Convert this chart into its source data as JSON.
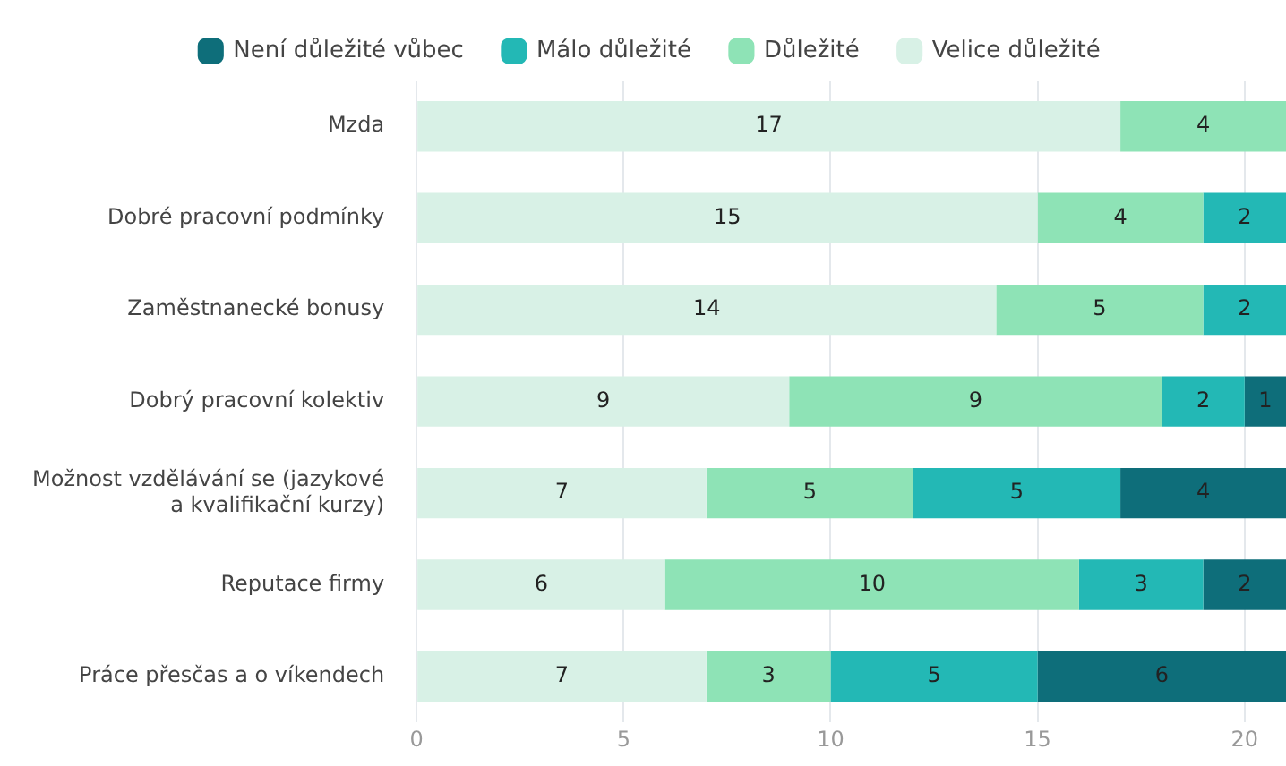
{
  "chart_data": {
    "type": "bar",
    "orientation": "horizontal",
    "stacked": true,
    "categories": [
      "Mzda",
      "Dobré pracovní podmínky",
      "Zaměstnanecké bonusy",
      "Dobrý pracovní kolektiv",
      "Možnost vzdělávání se (jazykové a kvalifikační kurzy)",
      "Reputace firmy",
      "Práce přesčas a o víkendech"
    ],
    "series": [
      {
        "name": "Velice důležité",
        "color": "#d8f1e6",
        "values": [
          17,
          15,
          14,
          9,
          7,
          6,
          7
        ]
      },
      {
        "name": "Důležité",
        "color": "#8ee3b6",
        "values": [
          4,
          4,
          5,
          9,
          5,
          10,
          3
        ]
      },
      {
        "name": "Málo důležité",
        "color": "#23b8b5",
        "values": [
          null,
          2,
          2,
          2,
          5,
          3,
          5
        ]
      },
      {
        "name": "Není důležité vůbec",
        "color": "#0e6e7a",
        "values": [
          null,
          null,
          null,
          1,
          4,
          2,
          6
        ]
      }
    ],
    "xlim": [
      0,
      21
    ],
    "xticks": [
      0,
      5,
      10,
      15,
      20
    ],
    "grid": "x",
    "legend": "top",
    "data_labels": true
  }
}
